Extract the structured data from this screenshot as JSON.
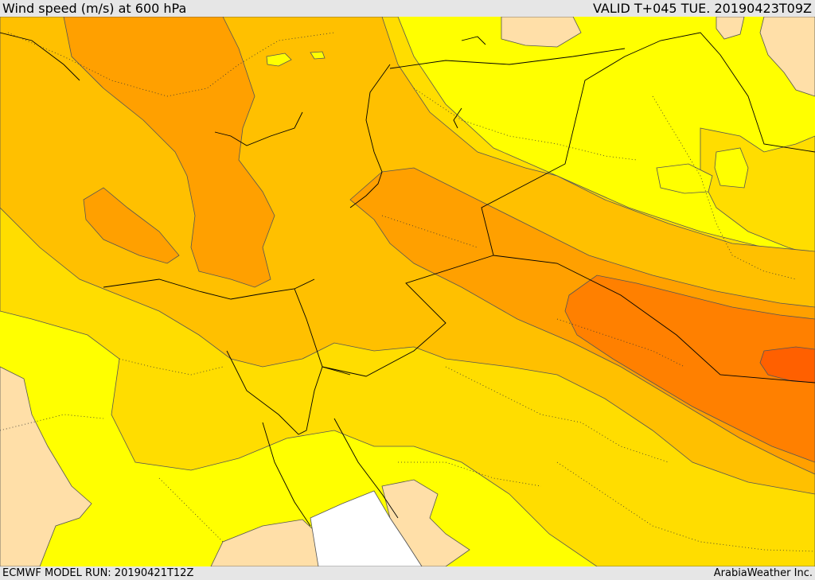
{
  "header": {
    "title": "Wind speed (m/s) at 600 hPa",
    "valid_time": "VALID T+045 TUE. 20190423T09Z"
  },
  "footer": {
    "model_run": "ECMWF MODEL RUN: 20190421T12Z",
    "credit": "ArabiaWeather Inc."
  },
  "map": {
    "fill_colors": {
      "lowest": "#ffffff",
      "low": "#ffdfa8",
      "light": "#ffff00",
      "medium": "#ffdd00",
      "medium_high": "#ffc000",
      "high": "#ffa000",
      "higher": "#ff8000",
      "highest": "#ff6000"
    },
    "contour_color": "#555555",
    "border_color": "#000000"
  }
}
